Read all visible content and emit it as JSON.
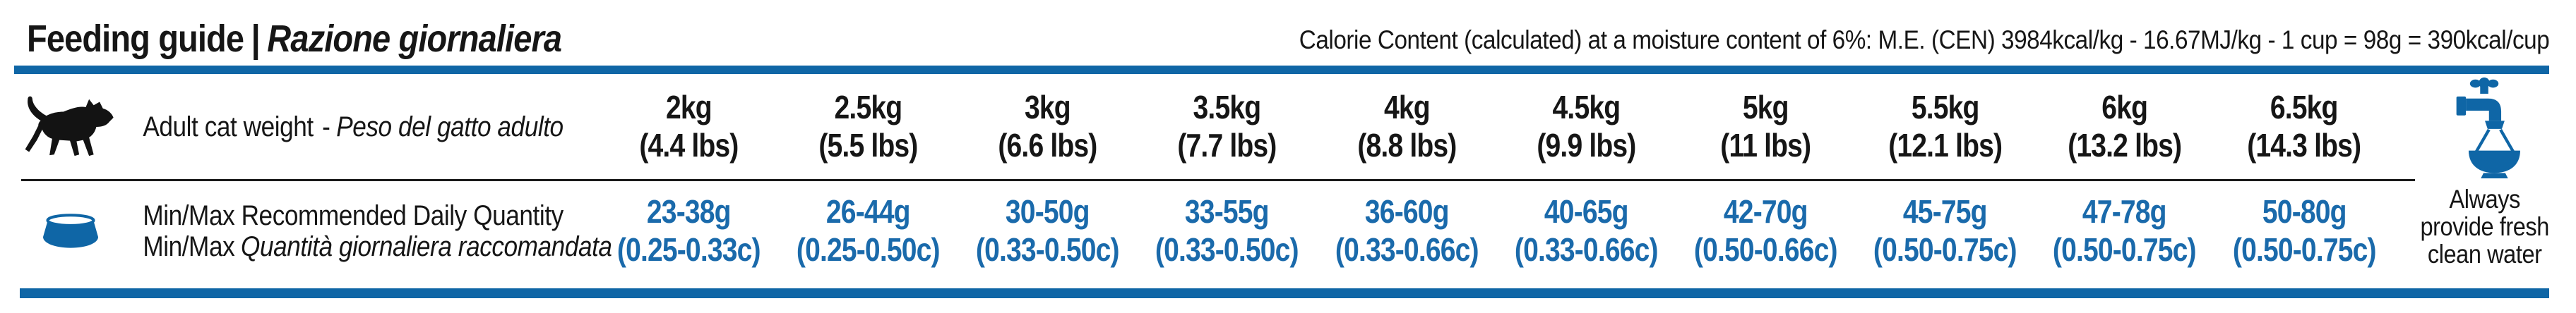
{
  "header": {
    "title": {
      "en": "Feeding guide",
      "separator": "|",
      "it": "Razione giornaliera"
    },
    "calorie_note": "Calorie Content (calculated) at a moisture content of 6%: M.E. (CEN) 3984kcal/kg - 16.67MJ/kg - 1 cup = 98g = 390kcal/cup"
  },
  "weight_row": {
    "label_en": "Adult cat weight",
    "separator": "-",
    "label_it": "Peso del gatto adulto"
  },
  "quantity_row": {
    "label_en": "Min/Max Recommended Daily Quantity",
    "label_it_prefix": "Min/Max",
    "label_it": "Quantità giornaliera raccomandata"
  },
  "columns": [
    {
      "weight_kg": "2kg",
      "weight_lbs": "(4.4 lbs)",
      "grams": "23-38g",
      "cups": "(0.25-0.33c)"
    },
    {
      "weight_kg": "2.5kg",
      "weight_lbs": "(5.5 lbs)",
      "grams": "26-44g",
      "cups": "(0.25-0.50c)"
    },
    {
      "weight_kg": "3kg",
      "weight_lbs": "(6.6 lbs)",
      "grams": "30-50g",
      "cups": "(0.33-0.50c)"
    },
    {
      "weight_kg": "3.5kg",
      "weight_lbs": "(7.7 lbs)",
      "grams": "33-55g",
      "cups": "(0.33-0.50c)"
    },
    {
      "weight_kg": "4kg",
      "weight_lbs": "(8.8 lbs)",
      "grams": "36-60g",
      "cups": "(0.33-0.66c)"
    },
    {
      "weight_kg": "4.5kg",
      "weight_lbs": "(9.9 lbs)",
      "grams": "40-65g",
      "cups": "(0.33-0.66c)"
    },
    {
      "weight_kg": "5kg",
      "weight_lbs": "(11 lbs)",
      "grams": "42-70g",
      "cups": "(0.50-0.66c)"
    },
    {
      "weight_kg": "5.5kg",
      "weight_lbs": "(12.1 lbs)",
      "grams": "45-75g",
      "cups": "(0.50-0.75c)"
    },
    {
      "weight_kg": "6kg",
      "weight_lbs": "(13.2 lbs)",
      "grams": "47-78g",
      "cups": "(0.50-0.75c)"
    },
    {
      "weight_kg": "6.5kg",
      "weight_lbs": "(14.3 lbs)",
      "grams": "50-80g",
      "cups": "(0.50-0.75c)"
    }
  ],
  "water_note": {
    "lines": [
      "Always",
      "provide fresh",
      "clean water"
    ]
  },
  "icons": {
    "cat": "adult-cat-silhouette",
    "bowl": "pet-food-bowl",
    "tap": "water-tap-over-bowl"
  },
  "colors": {
    "brand_blue": "#0f66a6",
    "value_blue": "#1a6aab",
    "text_black": "#161616"
  }
}
